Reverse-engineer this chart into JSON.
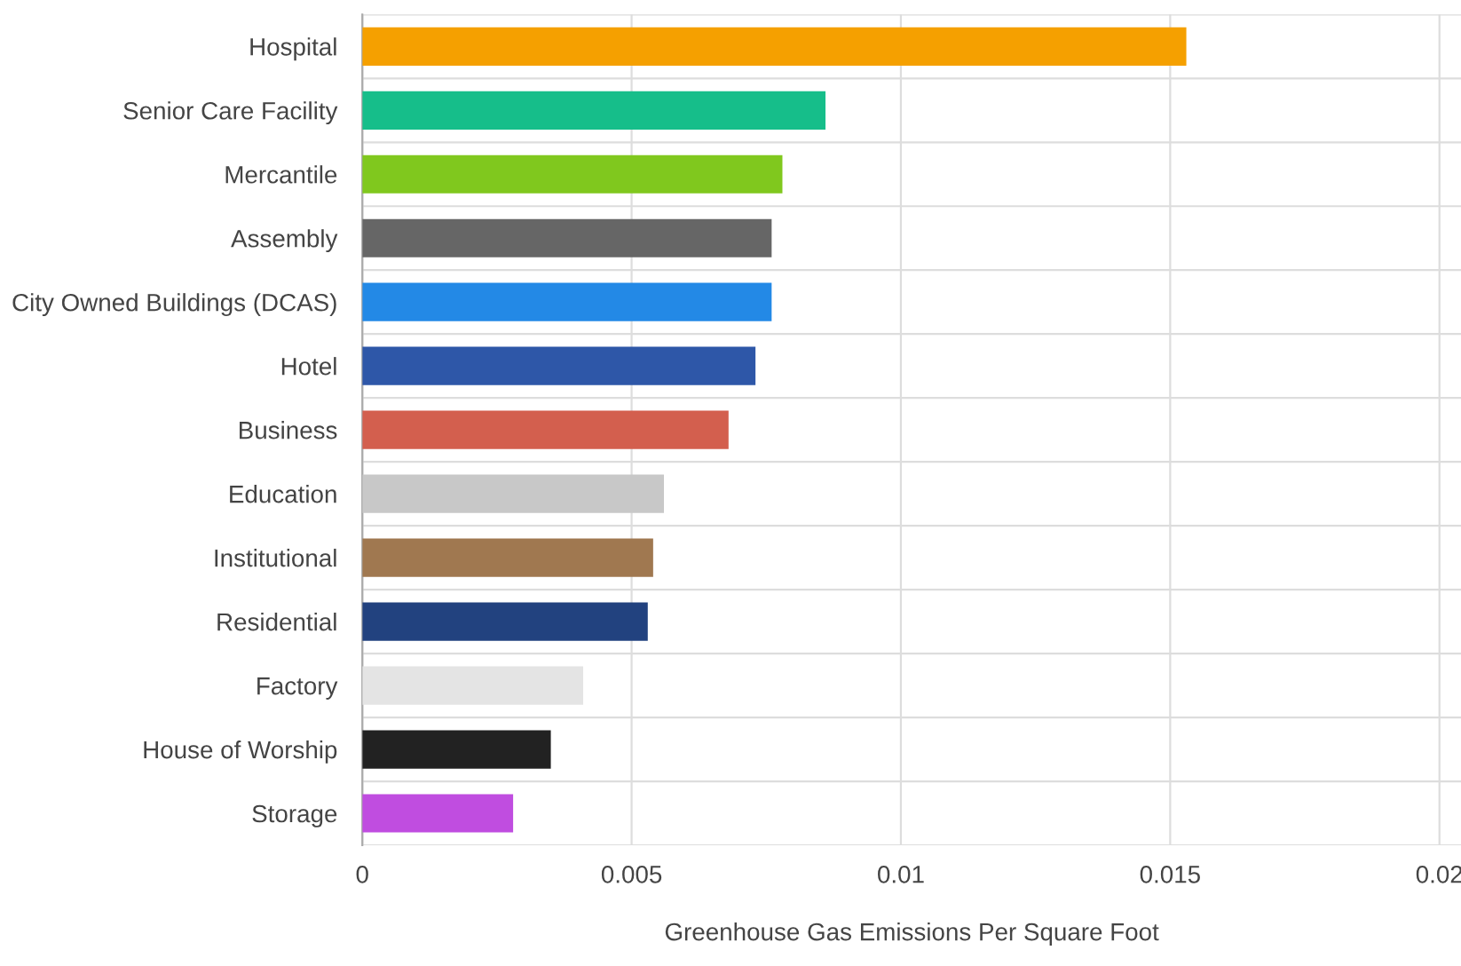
{
  "chart_data": {
    "type": "bar",
    "orientation": "horizontal",
    "xlabel": "Greenhouse Gas Emissions Per Square Foot",
    "categories": [
      "Hospital",
      "Senior Care Facility",
      "Mercantile",
      "Assembly",
      "City Owned Buildings (DCAS)",
      "Hotel",
      "Business",
      "Education",
      "Institutional",
      "Residential",
      "Factory",
      "House of Worship",
      "Storage"
    ],
    "values": [
      0.0153,
      0.0086,
      0.0078,
      0.0076,
      0.0076,
      0.0073,
      0.0068,
      0.0056,
      0.0054,
      0.0053,
      0.0041,
      0.0035,
      0.0028
    ],
    "colors": [
      "#f5a000",
      "#16be8a",
      "#80c81e",
      "#666666",
      "#2389e6",
      "#2e57a8",
      "#d35f4e",
      "#c8c8c8",
      "#a07850",
      "#22427f",
      "#e4e4e4",
      "#222222",
      "#c04de0"
    ],
    "xlim": [
      0,
      0.0204
    ],
    "xticks": [
      0,
      0.005,
      0.01,
      0.015,
      0.02
    ],
    "grid": true
  }
}
